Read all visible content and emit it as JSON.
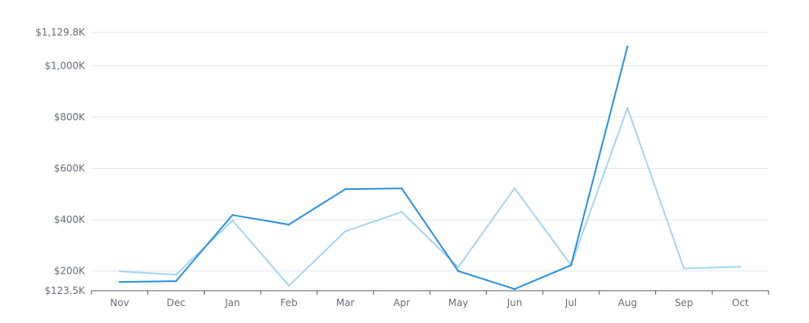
{
  "chart_data": {
    "type": "line",
    "categories": [
      "Nov",
      "Dec",
      "Jan",
      "Feb",
      "Mar",
      "Apr",
      "May",
      "Jun",
      "Jul",
      "Aug",
      "Sep",
      "Oct"
    ],
    "y_ticks": [
      {
        "value": 123500,
        "label": "$123.5K"
      },
      {
        "value": 200000,
        "label": "$200K"
      },
      {
        "value": 400000,
        "label": "$400K"
      },
      {
        "value": 600000,
        "label": "$600K"
      },
      {
        "value": 800000,
        "label": "$800K"
      },
      {
        "value": 1000000,
        "label": "$1,000K"
      },
      {
        "value": 1129800,
        "label": "$1,129.8K"
      }
    ],
    "ylim": [
      123500,
      1129800
    ],
    "grid": true,
    "series": [
      {
        "color": "#2b8fe0",
        "values": [
          157000,
          161000,
          418000,
          381000,
          519000,
          522000,
          200000,
          130000,
          223000,
          1074000,
          null,
          null
        ]
      },
      {
        "color": "#a6d4f4",
        "values": [
          199000,
          186000,
          397000,
          143000,
          355000,
          430000,
          215000,
          523000,
          223000,
          835000,
          210000,
          217000
        ]
      }
    ]
  }
}
